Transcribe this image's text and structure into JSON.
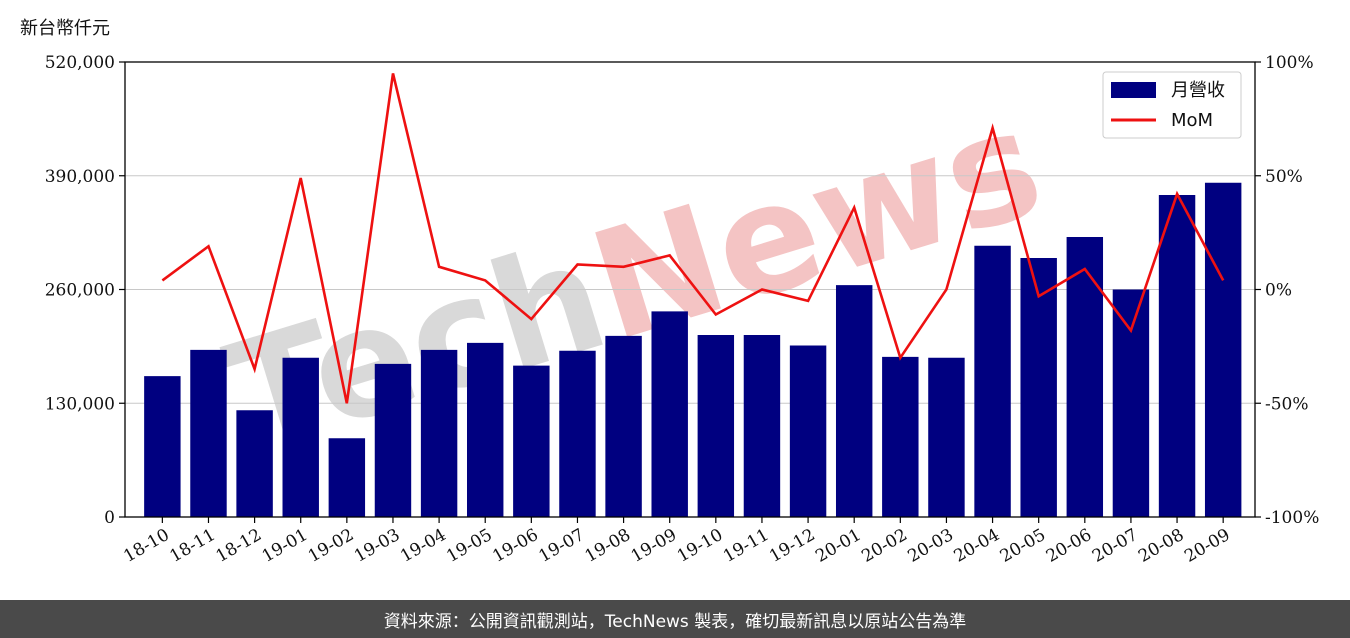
{
  "unit_label": "新台幣仟元",
  "footer_text": "資料來源：公開資訊觀測站，TechNews 製表，確切最新訊息以原站公告為準",
  "watermark_text": "TechNews",
  "colors": {
    "bar": "#000080",
    "line": "#ee1111",
    "footer_bg": "#4a4a4a",
    "watermark_gray": "#d9d9d9",
    "watermark_red": "#f4c4c4"
  },
  "chart_data": {
    "type": "bar",
    "categories": [
      "18-10",
      "18-11",
      "18-12",
      "19-01",
      "19-02",
      "19-03",
      "19-04",
      "19-05",
      "19-06",
      "19-07",
      "19-08",
      "19-09",
      "19-10",
      "19-11",
      "19-12",
      "20-01",
      "20-02",
      "20-03",
      "20-04",
      "20-05",
      "20-06",
      "20-07",
      "20-08",
      "20-09"
    ],
    "series": [
      {
        "name": "月營收",
        "type": "bar",
        "axis": "left",
        "values": [
          161000,
          191000,
          122000,
          182000,
          90000,
          175000,
          191000,
          199000,
          173000,
          190000,
          207000,
          235000,
          208000,
          208000,
          196000,
          265000,
          183000,
          182000,
          310000,
          296000,
          320000,
          260000,
          368000,
          382000
        ]
      },
      {
        "name": "MoM",
        "type": "line",
        "axis": "right",
        "values": [
          4,
          19,
          -35,
          49,
          -50,
          95,
          10,
          4,
          -13,
          11,
          10,
          15,
          -11,
          0,
          -5,
          36,
          -30,
          0,
          71,
          -3,
          9,
          -18,
          42,
          4
        ]
      }
    ],
    "y_left": {
      "ylim": [
        0,
        520000
      ],
      "ticks": [
        "0",
        "130,000",
        "260,000",
        "390,000",
        "520,000"
      ]
    },
    "y_right": {
      "ylim": [
        -100,
        100
      ],
      "ticks": [
        "-100%",
        "-50%",
        "0%",
        "50%",
        "100%"
      ]
    },
    "grid": "horizontal",
    "legend_position": "top-right"
  }
}
